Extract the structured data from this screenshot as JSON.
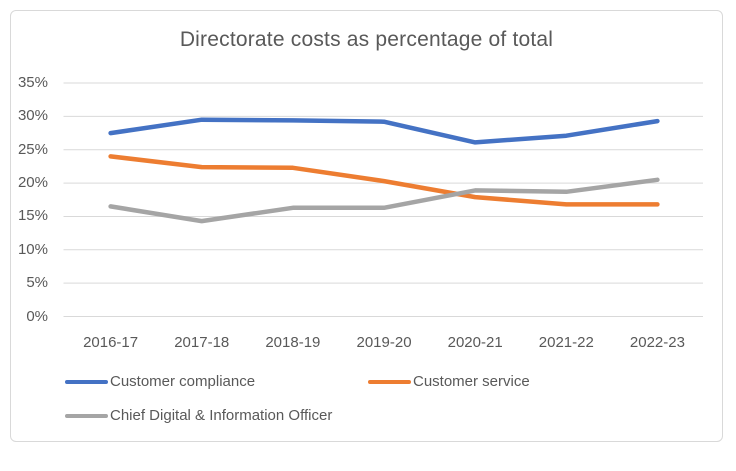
{
  "chart_data": {
    "type": "line",
    "title": "Directorate costs as percentage of total",
    "categories": [
      "2016-17",
      "2017-18",
      "2018-19",
      "2019-20",
      "2020-21",
      "2021-22",
      "2022-23"
    ],
    "series": [
      {
        "name": "Customer compliance",
        "color": "#4472C4",
        "values": [
          27.5,
          29.5,
          29.4,
          29.2,
          26.1,
          27.1,
          29.3
        ]
      },
      {
        "name": "Customer service",
        "color": "#ED7D31",
        "values": [
          24.0,
          22.4,
          22.3,
          20.3,
          17.9,
          16.8,
          16.8
        ]
      },
      {
        "name": "Chief Digital & Information Officer",
        "color": "#A5A5A5",
        "values": [
          16.5,
          14.3,
          16.3,
          16.3,
          18.9,
          18.7,
          20.5
        ]
      }
    ],
    "y_axis": {
      "ticks": [
        "0%",
        "5%",
        "10%",
        "15%",
        "20%",
        "25%",
        "30%",
        "35%"
      ],
      "min": 0,
      "max": 35,
      "step": 5,
      "unit": "%"
    },
    "grid": true,
    "legend_position": "bottom",
    "colors": {
      "gridline": "#D9D9D9",
      "frame_border": "#D9D9D9",
      "text": "#595959"
    }
  }
}
